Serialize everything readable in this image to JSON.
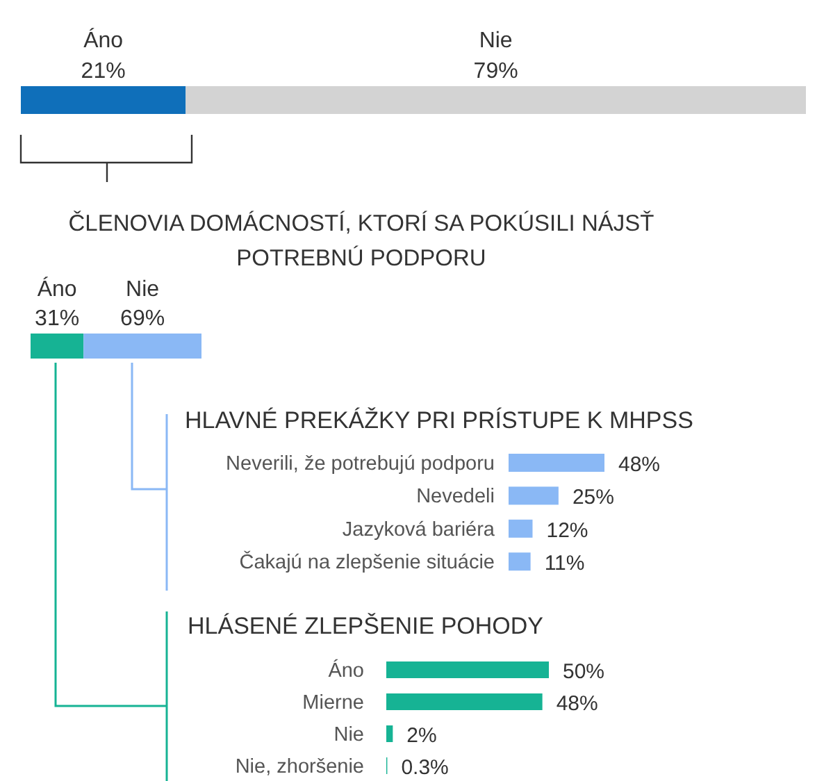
{
  "chart_data": [
    {
      "type": "bar",
      "orientation": "horizontal",
      "stacked": true,
      "categories": [
        null
      ],
      "series": [
        {
          "name": "Áno",
          "color": "#0f6fba",
          "values": [
            21
          ],
          "value_labels": [
            "21%"
          ]
        },
        {
          "name": "Nie",
          "color": "#d3d3d3",
          "values": [
            79
          ],
          "value_labels": [
            "79%"
          ]
        }
      ]
    },
    {
      "type": "bar",
      "orientation": "horizontal",
      "stacked": true,
      "title": "ČLENOVIA DOMÁCNOSTÍ, KTORÍ SA POKÚSILI NÁJSŤ POTREBNÚ PODPORU",
      "categories": [
        null
      ],
      "series": [
        {
          "name": "Áno",
          "color": "#16b394",
          "values": [
            31
          ],
          "value_labels": [
            "31%"
          ]
        },
        {
          "name": "Nie",
          "color": "#8ab8f5",
          "values": [
            69
          ],
          "value_labels": [
            "69%"
          ]
        }
      ]
    },
    {
      "type": "bar",
      "orientation": "horizontal",
      "title": "HLAVNÉ PREKÁŽKY PRI PRÍSTUPE K MHPSS",
      "categories": [
        "Neverili, že potrebujú podporu",
        "Nevedeli",
        "Jazyková bariéra",
        "Čakajú na zlepšenie situácie"
      ],
      "values": [
        48,
        25,
        12,
        11
      ],
      "color": "#8ab8f5",
      "value_labels": [
        "48%",
        "25%",
        "12%",
        "11%"
      ]
    },
    {
      "type": "bar",
      "orientation": "horizontal",
      "title": "HLÁSENÉ ZLEPŠENIE POHODY",
      "categories": [
        "Áno",
        "Mierne",
        "Nie",
        "Nie, zhoršenie"
      ],
      "values": [
        50,
        48,
        2,
        0.3
      ],
      "color": "#16b394",
      "value_labels": [
        "50%",
        "48%",
        "2%",
        "0.3%"
      ]
    }
  ]
}
